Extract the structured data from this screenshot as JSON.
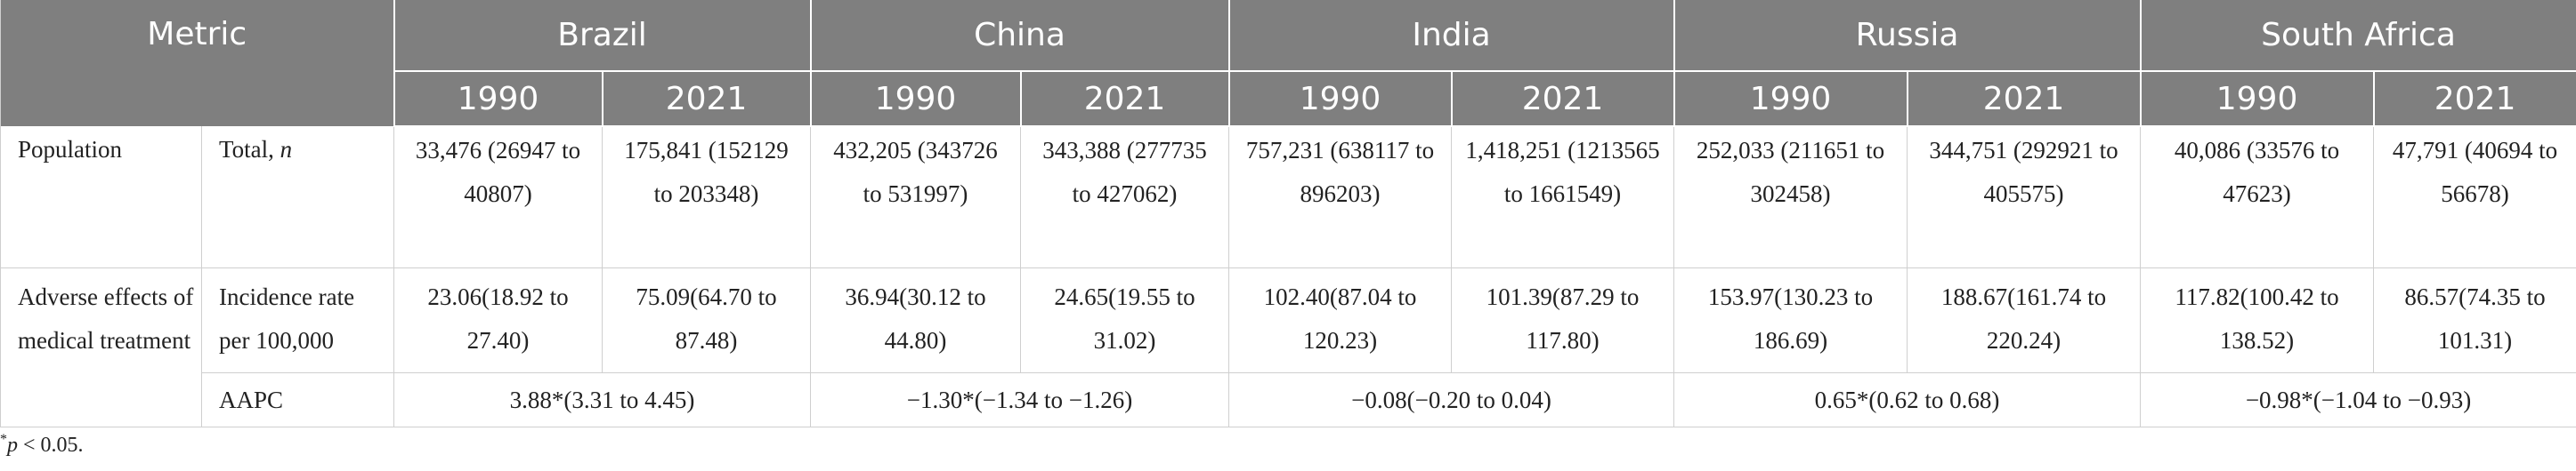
{
  "header": {
    "metric_label": "Metric",
    "countries": [
      "Brazil",
      "China",
      "India",
      "Russia",
      "South Africa"
    ],
    "years": [
      "1990",
      "2021",
      "1990",
      "2021",
      "1990",
      "2021",
      "1990",
      "2021",
      "1990",
      "2021"
    ]
  },
  "rows": {
    "population": {
      "group_label": "Population",
      "sub_label": "Total, ",
      "sub_label_italic": "n",
      "values": [
        "33,476 (26947 to 40807)",
        "175,841 (152129 to 203348)",
        "432,205 (343726 to 531997)",
        "343,388 (277735 to 427062)",
        "757,231 (638117 to 896203)",
        "1,418,251 (1213565 to 1661549)",
        "252,033 (211651 to 302458)",
        "344,751 (292921 to 405575)",
        "40,086 (33576 to 47623)",
        "47,791 (40694 to 56678)"
      ]
    },
    "adverse": {
      "group_label": "Adverse effects of medical treatment",
      "incidence_label": "Incidence rate per 100,000",
      "incidence_values": [
        "23.06(18.92 to 27.40)",
        "75.09(64.70 to 87.48)",
        "36.94(30.12 to 44.80)",
        "24.65(19.55 to 31.02)",
        "102.40(87.04 to 120.23)",
        "101.39(87.29 to 117.80)",
        "153.97(130.23 to 186.69)",
        "188.67(161.74 to 220.24)",
        "117.82(100.42 to 138.52)",
        "86.57(74.35 to 101.31)"
      ],
      "aapc_label": "AAPC",
      "aapc_values": [
        "3.88*(3.31 to 4.45)",
        "−1.30*(−1.34 to −1.26)",
        "−0.08(−0.20 to 0.04)",
        "0.65*(0.62 to 0.68)",
        "−0.98*(−1.04 to −0.93)"
      ]
    }
  },
  "footnote": {
    "symbol": "*",
    "var": "p",
    "text": " < 0.05."
  }
}
